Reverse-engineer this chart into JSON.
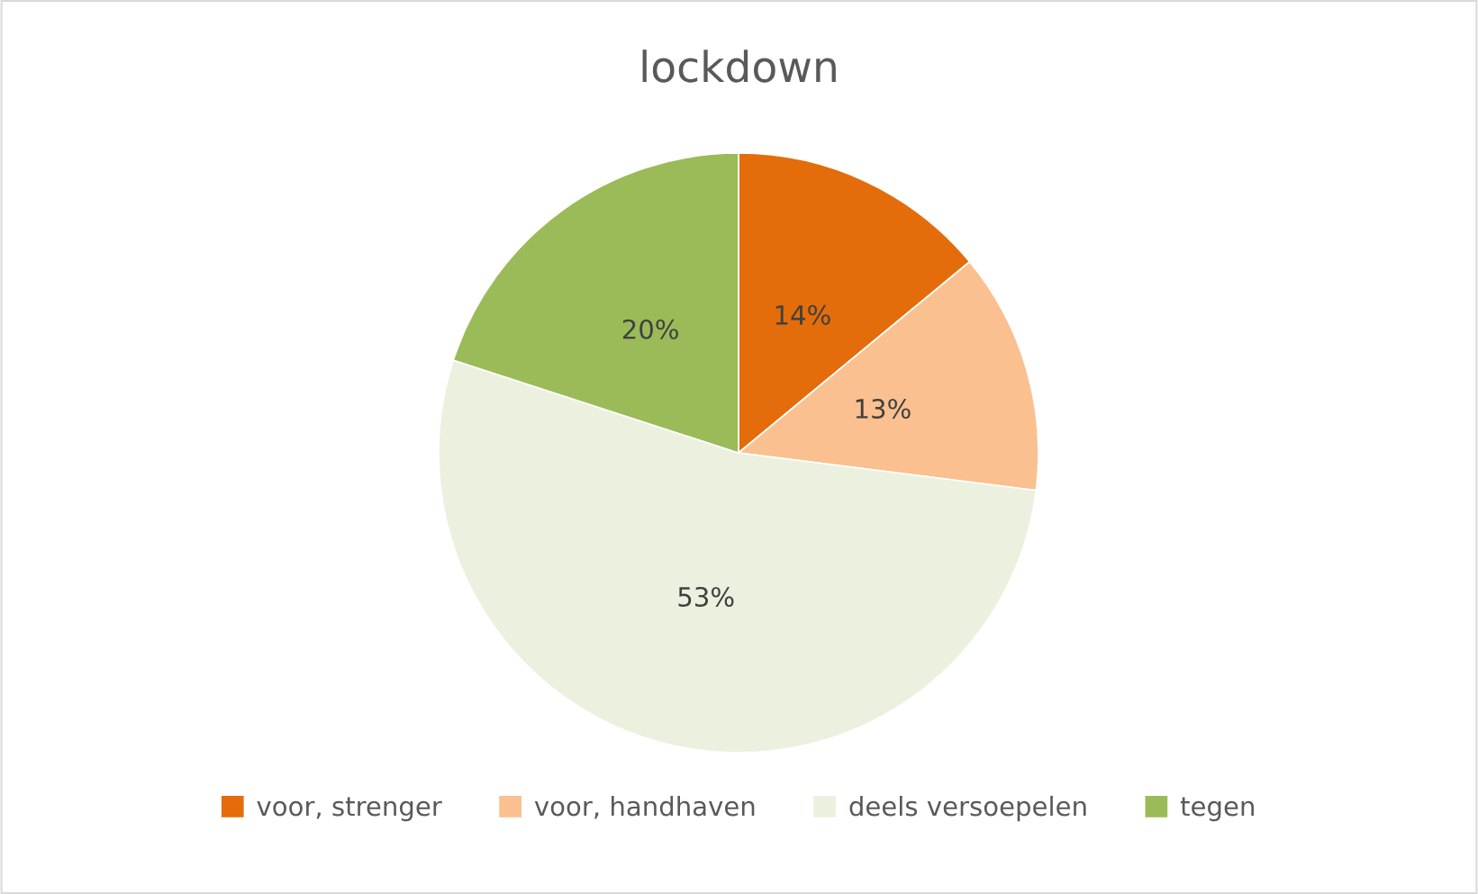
{
  "chart_data": {
    "type": "pie",
    "title": "lockdown",
    "categories": [
      "voor, strenger",
      "voor, handhaven",
      "deels versoepelen",
      "tegen"
    ],
    "values": [
      14,
      13,
      53,
      20
    ],
    "colors": [
      "#e46c0a",
      "#fac090",
      "#ebf1de",
      "#9bbb59"
    ],
    "value_labels": [
      "14%",
      "13%",
      "53%",
      "20%"
    ],
    "legend": "bottom"
  }
}
